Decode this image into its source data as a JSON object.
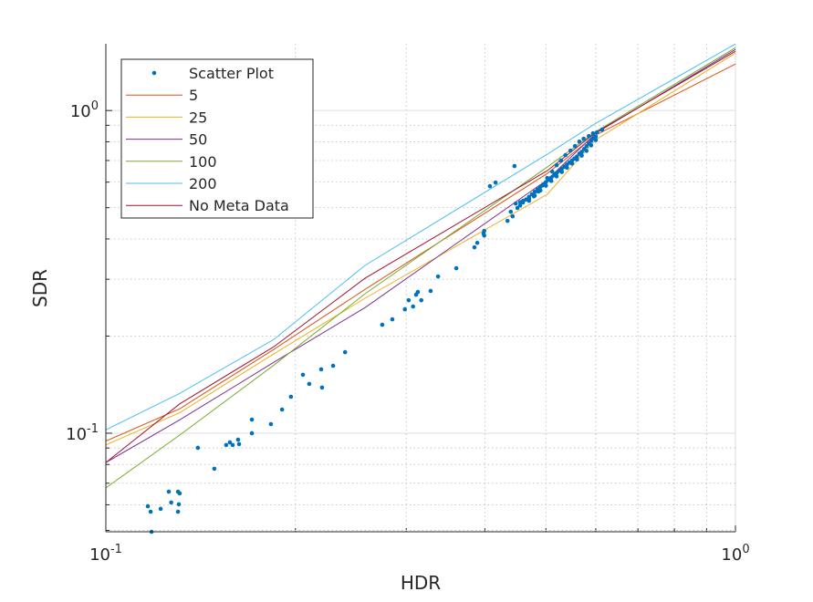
{
  "chart_data": {
    "type": "scatter",
    "xscale": "log",
    "yscale": "log",
    "xlabel": "HDR",
    "ylabel": "SDR",
    "xlim": [
      0.1,
      1.0
    ],
    "ylim": [
      0.0495,
      1.61
    ],
    "grid": true,
    "legend_position": "top-left",
    "x_tick_labels": [
      {
        "value": 0.1,
        "base": "10",
        "exp": "-1"
      },
      {
        "value": 1.0,
        "base": "10",
        "exp": "0"
      }
    ],
    "y_tick_labels": [
      {
        "value": 0.1,
        "base": "10",
        "exp": "-1"
      },
      {
        "value": 1.0,
        "base": "10",
        "exp": "0"
      }
    ],
    "scatter": {
      "name": "Scatter Plot",
      "color": "#0072BD",
      "points": [
        [
          0.1166,
          0.0594
        ],
        [
          0.1178,
          0.0571
        ],
        [
          0.1222,
          0.0583
        ],
        [
          0.1259,
          0.0659
        ],
        [
          0.127,
          0.061
        ],
        [
          0.1302,
          0.0659
        ],
        [
          0.131,
          0.0651
        ],
        [
          0.1302,
          0.0571
        ],
        [
          0.1306,
          0.0602
        ],
        [
          0.1182,
          0.0495
        ],
        [
          0.14,
          0.0901
        ],
        [
          0.1487,
          0.0776
        ],
        [
          0.1553,
          0.0919
        ],
        [
          0.1574,
          0.0937
        ],
        [
          0.159,
          0.0919
        ],
        [
          0.1622,
          0.0955
        ],
        [
          0.1628,
          0.0925
        ],
        [
          0.1706,
          0.1102
        ],
        [
          0.1706,
          0.1
        ],
        [
          0.1829,
          0.1067
        ],
        [
          0.1905,
          0.1184
        ],
        [
          0.1968,
          0.1297
        ],
        [
          0.2056,
          0.1517
        ],
        [
          0.2104,
          0.1422
        ],
        [
          0.2198,
          0.1578
        ],
        [
          0.2205,
          0.1385
        ],
        [
          0.2296,
          0.1618
        ],
        [
          0.2399,
          0.1783
        ],
        [
          0.2748,
          0.2168
        ],
        [
          0.2851,
          0.2254
        ],
        [
          0.2985,
          0.2421
        ],
        [
          0.3027,
          0.2583
        ],
        [
          0.3076,
          0.247
        ],
        [
          0.311,
          0.2687
        ],
        [
          0.313,
          0.274
        ],
        [
          0.317,
          0.2583
        ],
        [
          0.328,
          0.276
        ],
        [
          0.337,
          0.306
        ],
        [
          0.3603,
          0.3245
        ],
        [
          0.385,
          0.3768
        ],
        [
          0.389,
          0.389
        ],
        [
          0.398,
          0.4157
        ],
        [
          0.399,
          0.4236
        ],
        [
          0.399,
          0.41
        ],
        [
          0.4074,
          0.583
        ],
        [
          0.4159,
          0.598
        ],
        [
          0.4345,
          0.455
        ],
        [
          0.4397,
          0.4856
        ],
        [
          0.4426,
          0.47
        ],
        [
          0.4457,
          0.673
        ],
        [
          0.4505,
          0.4989
        ],
        [
          0.4477,
          0.515
        ],
        [
          0.455,
          0.508
        ],
        [
          0.4597,
          0.5188
        ],
        [
          0.47,
          0.532
        ],
        [
          0.4786,
          0.542
        ],
        [
          0.4864,
          0.561
        ],
        [
          0.4943,
          0.586
        ],
        [
          0.5025,
          0.618
        ],
        [
          0.5117,
          0.647
        ],
        [
          0.52,
          0.677
        ],
        [
          0.5284,
          0.6995
        ],
        [
          0.537,
          0.7274
        ],
        [
          0.547,
          0.751
        ],
        [
          0.556,
          0.776
        ],
        [
          0.565,
          0.801
        ],
        [
          0.574,
          0.8174
        ],
        [
          0.585,
          0.8337
        ],
        [
          0.594,
          0.85
        ],
        [
          0.6026,
          0.8554
        ],
        [
          0.614,
          0.872
        ],
        [
          0.455,
          0.52
        ],
        [
          0.46,
          0.525
        ],
        [
          0.465,
          0.53
        ],
        [
          0.47,
          0.54
        ],
        [
          0.475,
          0.55
        ],
        [
          0.48,
          0.56
        ],
        [
          0.485,
          0.57
        ],
        [
          0.49,
          0.58
        ],
        [
          0.495,
          0.59
        ],
        [
          0.5,
          0.6
        ],
        [
          0.505,
          0.61
        ],
        [
          0.51,
          0.62
        ],
        [
          0.515,
          0.63
        ],
        [
          0.52,
          0.64
        ],
        [
          0.525,
          0.65
        ],
        [
          0.53,
          0.66
        ],
        [
          0.535,
          0.67
        ],
        [
          0.54,
          0.68
        ],
        [
          0.545,
          0.69
        ],
        [
          0.55,
          0.7
        ],
        [
          0.555,
          0.71
        ],
        [
          0.56,
          0.72
        ],
        [
          0.565,
          0.735
        ],
        [
          0.57,
          0.745
        ],
        [
          0.575,
          0.76
        ],
        [
          0.58,
          0.775
        ],
        [
          0.585,
          0.79
        ],
        [
          0.59,
          0.805
        ],
        [
          0.595,
          0.82
        ],
        [
          0.6,
          0.83
        ],
        [
          0.47,
          0.525
        ],
        [
          0.48,
          0.545
        ],
        [
          0.49,
          0.565
        ],
        [
          0.5,
          0.585
        ],
        [
          0.51,
          0.605
        ],
        [
          0.52,
          0.625
        ],
        [
          0.53,
          0.645
        ],
        [
          0.54,
          0.665
        ],
        [
          0.55,
          0.685
        ],
        [
          0.56,
          0.705
        ],
        [
          0.57,
          0.725
        ],
        [
          0.58,
          0.75
        ],
        [
          0.59,
          0.78
        ],
        [
          0.6,
          0.81
        ]
      ]
    },
    "series": [
      {
        "name": "5",
        "color": "#D95319",
        "points": [
          [
            0.1,
            0.0945
          ],
          [
            0.131,
            0.119
          ],
          [
            0.185,
            0.182
          ],
          [
            0.258,
            0.279
          ],
          [
            0.5025,
            0.638
          ],
          [
            0.6,
            0.839
          ],
          [
            1.0,
            1.393
          ]
        ]
      },
      {
        "name": "25",
        "color": "#EDB120",
        "points": [
          [
            0.1,
            0.092
          ],
          [
            0.131,
            0.1157
          ],
          [
            0.185,
            0.1763
          ],
          [
            0.258,
            0.262
          ],
          [
            0.5025,
            0.55
          ],
          [
            0.6,
            0.812
          ],
          [
            1.0,
            1.507
          ]
        ]
      },
      {
        "name": "50",
        "color": "#7E2F8E",
        "points": [
          [
            0.1,
            0.0811
          ],
          [
            0.131,
            0.11
          ],
          [
            0.185,
            0.166
          ],
          [
            0.258,
            0.245
          ],
          [
            0.5025,
            0.61
          ],
          [
            0.6,
            0.85
          ],
          [
            1.0,
            1.546
          ]
        ]
      },
      {
        "name": "100",
        "color": "#77AC30",
        "points": [
          [
            0.1,
            0.0677
          ],
          [
            0.131,
            0.0987
          ],
          [
            0.185,
            0.1627
          ],
          [
            0.258,
            0.2705
          ],
          [
            0.5025,
            0.668
          ],
          [
            0.6,
            0.86
          ],
          [
            1.0,
            1.566
          ]
        ]
      },
      {
        "name": "200",
        "color": "#4DBEEE",
        "points": [
          [
            0.1,
            0.1025
          ],
          [
            0.131,
            0.1329
          ],
          [
            0.185,
            0.1955
          ],
          [
            0.258,
            0.331
          ],
          [
            0.5025,
            0.732
          ],
          [
            0.6,
            0.913
          ],
          [
            1.0,
            1.608
          ]
        ]
      },
      {
        "name": "No Meta Data",
        "color": "#A2142F",
        "points": [
          [
            0.1,
            0.0811
          ],
          [
            0.131,
            0.1233
          ],
          [
            0.185,
            0.1855
          ],
          [
            0.258,
            0.302
          ],
          [
            0.5025,
            0.651
          ],
          [
            0.6,
            0.855
          ],
          [
            1.0,
            1.526
          ]
        ]
      }
    ]
  }
}
